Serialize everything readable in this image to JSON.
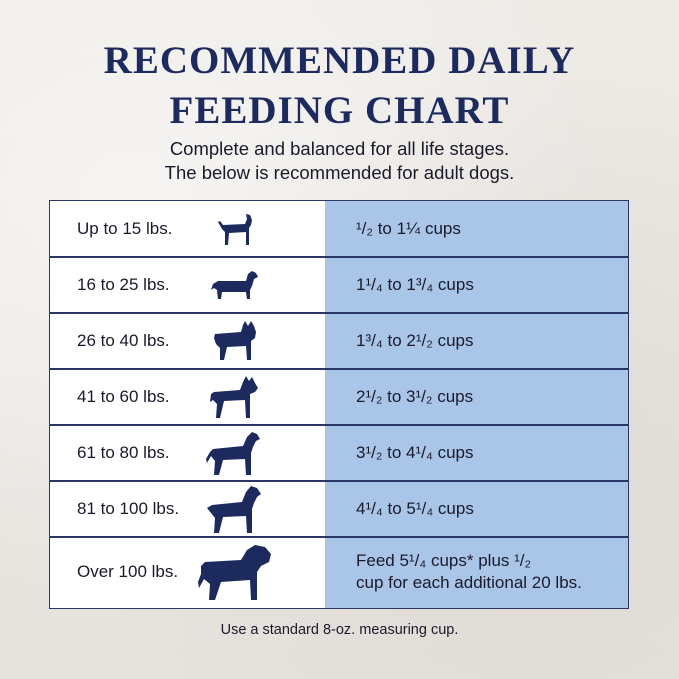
{
  "title_line1": "RECOMMENDED DAILY",
  "title_line2": "FEEDING CHART",
  "subtitle_line1": "Complete and balanced for all life stages.",
  "subtitle_line2": "The below is recommended for adult dogs.",
  "rows": [
    {
      "weight": "Up to 15 lbs.",
      "amount": "¹/₂ to 1¼ cups",
      "dog_icon": "small-terrier-icon"
    },
    {
      "weight": "16 to 25 lbs.",
      "amount": "1¹/₄ to 1³/₄ cups",
      "dog_icon": "dachshund-icon"
    },
    {
      "weight": "26 to 40 lbs.",
      "amount": "1³/₄ to 2¹/₂ cups",
      "dog_icon": "french-bulldog-icon"
    },
    {
      "weight": "41 to 60 lbs.",
      "amount": "2¹/₂ to 3¹/₂ cups",
      "dog_icon": "boxer-icon"
    },
    {
      "weight": "61 to 80 lbs.",
      "amount": "3¹/₂ to 4¹/₄ cups",
      "dog_icon": "labrador-icon"
    },
    {
      "weight": "81 to 100 lbs.",
      "amount": "4¹/₄ to 5¹/₄ cups",
      "dog_icon": "rottweiler-icon"
    },
    {
      "weight": "Over 100 lbs.",
      "amount_line1": "Feed 5¹/₄ cups* plus ¹/₂",
      "amount_line2": "cup for each additional 20 lbs.",
      "dog_icon": "mastiff-icon"
    }
  ],
  "footnote": "Use a standard 8-oz. measuring cup.",
  "colors": {
    "title": "#1c2a5e",
    "dog_silhouette": "#1c2a5e",
    "amount_column": "#a9c5e8",
    "table_border": "#2b3566"
  }
}
